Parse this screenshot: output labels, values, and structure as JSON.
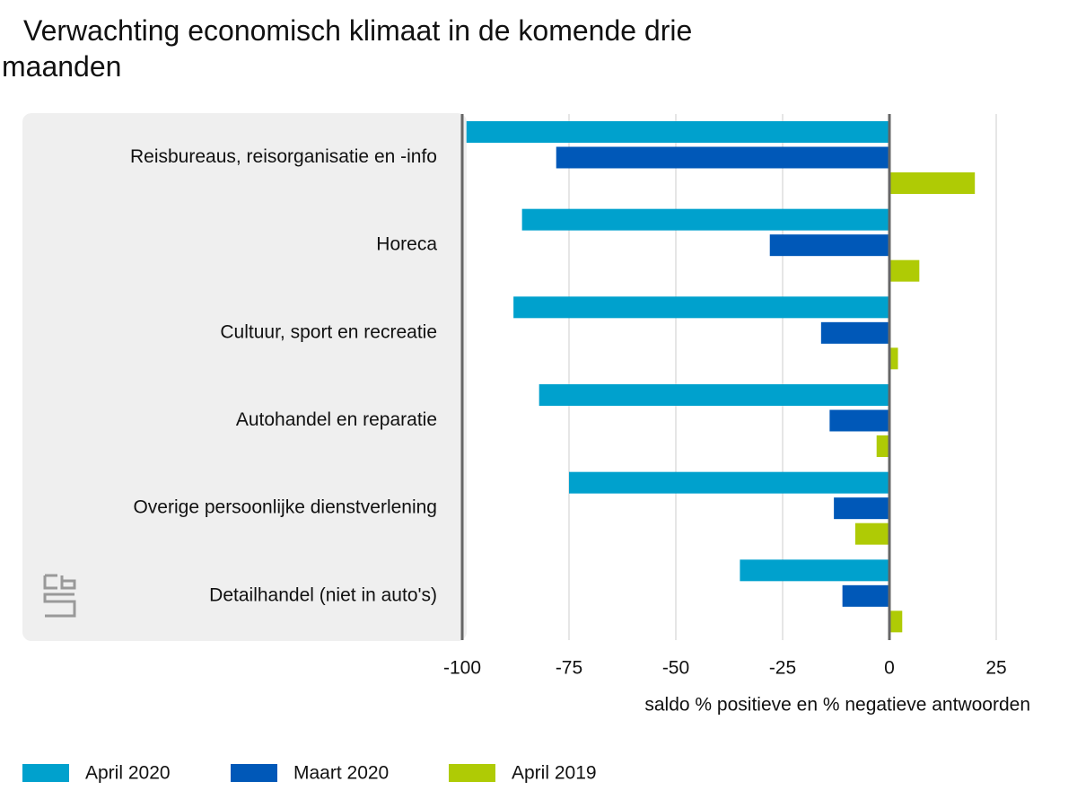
{
  "chart_data": {
    "type": "bar",
    "title": "Verwachting economisch klimaat in de komende drie maanden",
    "x_label": "saldo % positieve en % negatieve antwoorden",
    "categories": [
      "Reisbureaus, reisorganisatie en -info",
      "Horeca",
      "Cultuur, sport en recreatie",
      "Autohandel en reparatie",
      "Overige persoonlijke dienstverlening",
      "Detailhandel (niet in auto's)"
    ],
    "series": [
      {
        "name": "April 2020",
        "color": "#00a1cd",
        "values": [
          -99,
          -86,
          -88,
          -82,
          -75,
          -35
        ]
      },
      {
        "name": "Maart 2020",
        "color": "#0058b8",
        "values": [
          -78,
          -28,
          -16,
          -14,
          -13,
          -11
        ]
      },
      {
        "name": "April 2019",
        "color": "#afcb05",
        "values": [
          20,
          7,
          2,
          -3,
          -8,
          3
        ]
      }
    ],
    "xlim": [
      -100,
      25
    ],
    "xticks": [
      -100,
      -75,
      -50,
      -25,
      0,
      25
    ],
    "grid": true
  }
}
